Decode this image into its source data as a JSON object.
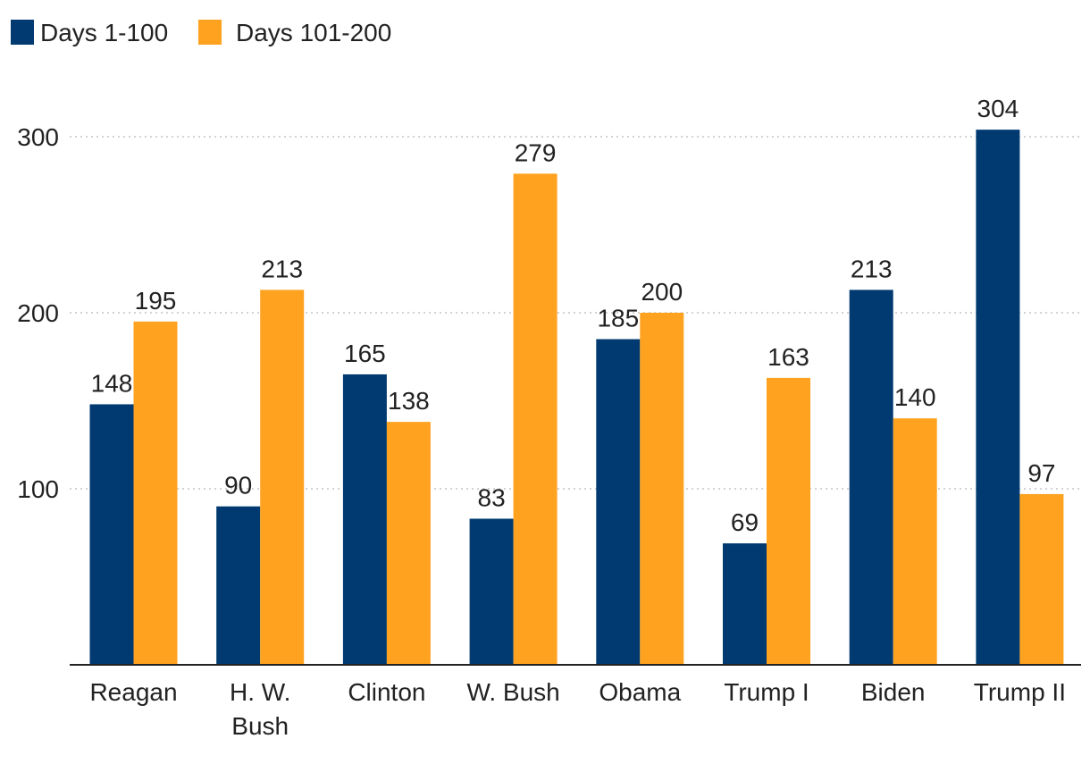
{
  "chart_data": {
    "type": "bar",
    "title": "",
    "xlabel": "",
    "ylabel": "",
    "categories": [
      [
        "Reagan"
      ],
      [
        "H. W.",
        "Bush"
      ],
      [
        "Clinton"
      ],
      [
        "W. Bush"
      ],
      [
        "Obama"
      ],
      [
        "Trump I"
      ],
      [
        "Biden"
      ],
      [
        "Trump II"
      ]
    ],
    "series": [
      {
        "name": "Days 1-100",
        "color": "#003a70",
        "values": [
          148,
          90,
          165,
          83,
          185,
          69,
          213,
          304
        ]
      },
      {
        "name": "Days 101-200",
        "color": "#ffa21f",
        "values": [
          195,
          213,
          138,
          279,
          200,
          163,
          140,
          97
        ]
      }
    ],
    "ylim": [
      0,
      310
    ],
    "yticks": [
      100,
      200,
      300
    ],
    "grid": true,
    "legend_position": "top-left"
  }
}
